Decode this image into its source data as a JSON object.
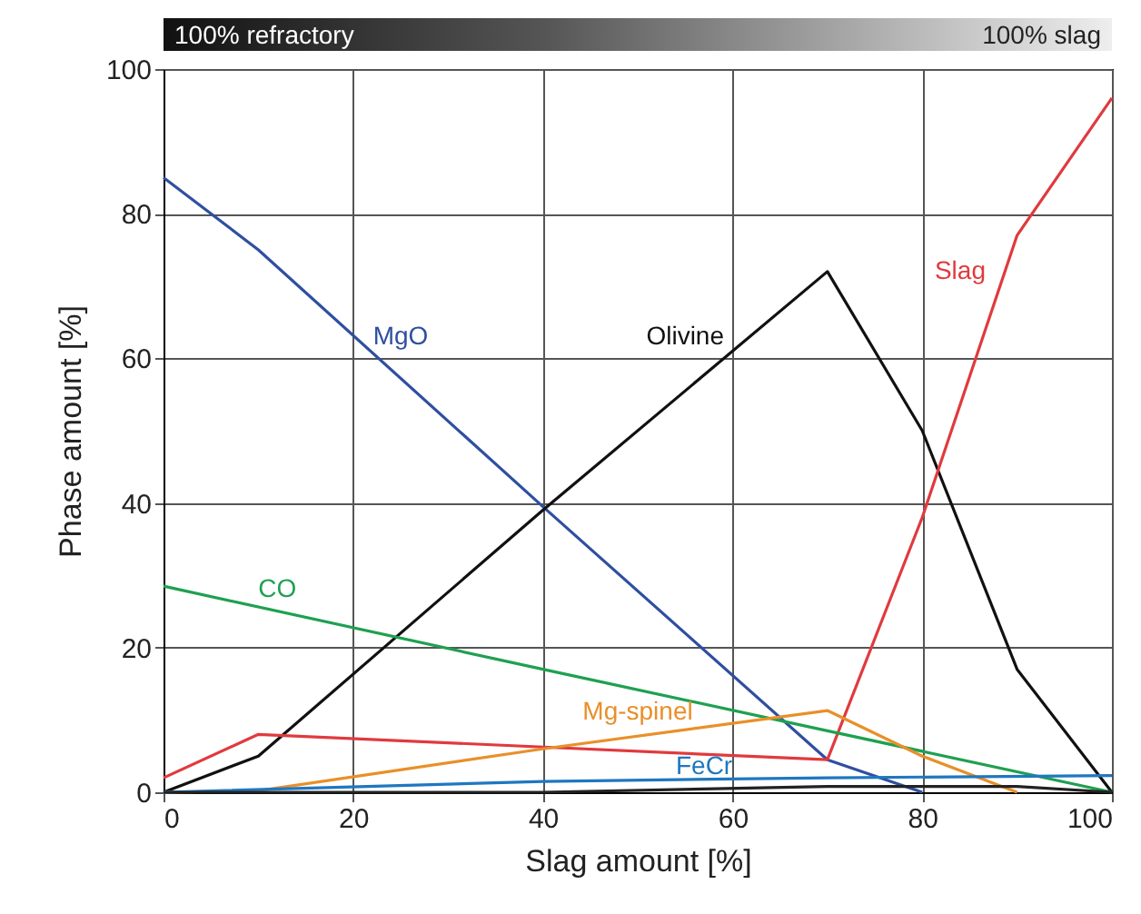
{
  "chart_data": {
    "type": "line",
    "xlabel": "Slag amount [%]",
    "ylabel": "Phase amount [%]",
    "annotations": [
      "100% refractory",
      "100% slag"
    ],
    "xlim": [
      0,
      100
    ],
    "ylim": [
      0,
      100
    ],
    "xticks": [
      0,
      20,
      40,
      60,
      80,
      100
    ],
    "yticks": [
      0,
      20,
      40,
      60,
      80,
      100
    ],
    "grid": true,
    "legend": false,
    "line_style": "solid",
    "series": [
      {
        "name": "MgO",
        "color": "#2f4fa0",
        "x": [
          0,
          10,
          40,
          70,
          80
        ],
        "values": [
          85,
          75,
          39.5,
          4.5,
          0
        ]
      },
      {
        "name": "Olivine",
        "color": "#111111",
        "x": [
          0,
          10,
          40,
          70,
          80,
          90,
          100
        ],
        "values": [
          0,
          5,
          39,
          72,
          50,
          17,
          0
        ]
      },
      {
        "name": "Slag",
        "color": "#e03a3e",
        "x": [
          0,
          10,
          70,
          80,
          90,
          100
        ],
        "values": [
          2,
          8,
          4.5,
          38,
          77,
          96
        ]
      },
      {
        "name": "CO",
        "color": "#1fa050",
        "x": [
          0,
          40,
          70,
          100
        ],
        "values": [
          28.5,
          17,
          8.5,
          0
        ]
      },
      {
        "name": "Mg-spinel",
        "color": "#e8902a",
        "x": [
          0,
          10,
          40,
          70,
          80,
          90
        ],
        "values": [
          0,
          0.2,
          6,
          11.3,
          5,
          0
        ]
      },
      {
        "name": "FeCr",
        "color": "#1f77c0",
        "x": [
          0,
          40,
          70,
          100
        ],
        "values": [
          0,
          1.5,
          2,
          2.3
        ]
      },
      {
        "color": "#222222",
        "x": [
          0,
          40,
          70,
          90,
          100
        ],
        "values": [
          0,
          0,
          0.8,
          0.8,
          0
        ]
      }
    ]
  }
}
